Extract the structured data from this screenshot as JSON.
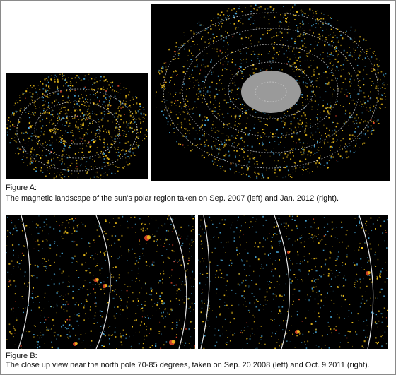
{
  "figure_a": {
    "label": "Figure A:",
    "caption": "The magnetic landscape of the sun's polar region taken on Sep. 2007 (left) and Jan. 2012 (right).",
    "panels": [
      {
        "description": "polar magnetogram Sep. 2007"
      },
      {
        "description": "polar magnetogram Jan. 2012"
      }
    ]
  },
  "figure_b": {
    "label": "Figure B:",
    "caption": "The close up view near the north pole 70-85 degrees, taken on Sep. 20 2008 (left) and Oct. 9 2011 (right).",
    "panels": [
      {
        "description": "close-up Sep. 20 2008"
      },
      {
        "description": "close-up Oct. 9 2011"
      }
    ]
  },
  "colors": {
    "background": "#000000",
    "positive_flux": "#f2c21b",
    "strong_flux": "#e0452a",
    "negative_flux": "#4aa8d8",
    "grid": "#ffffff",
    "polar_disk": "#9a9a9a"
  }
}
